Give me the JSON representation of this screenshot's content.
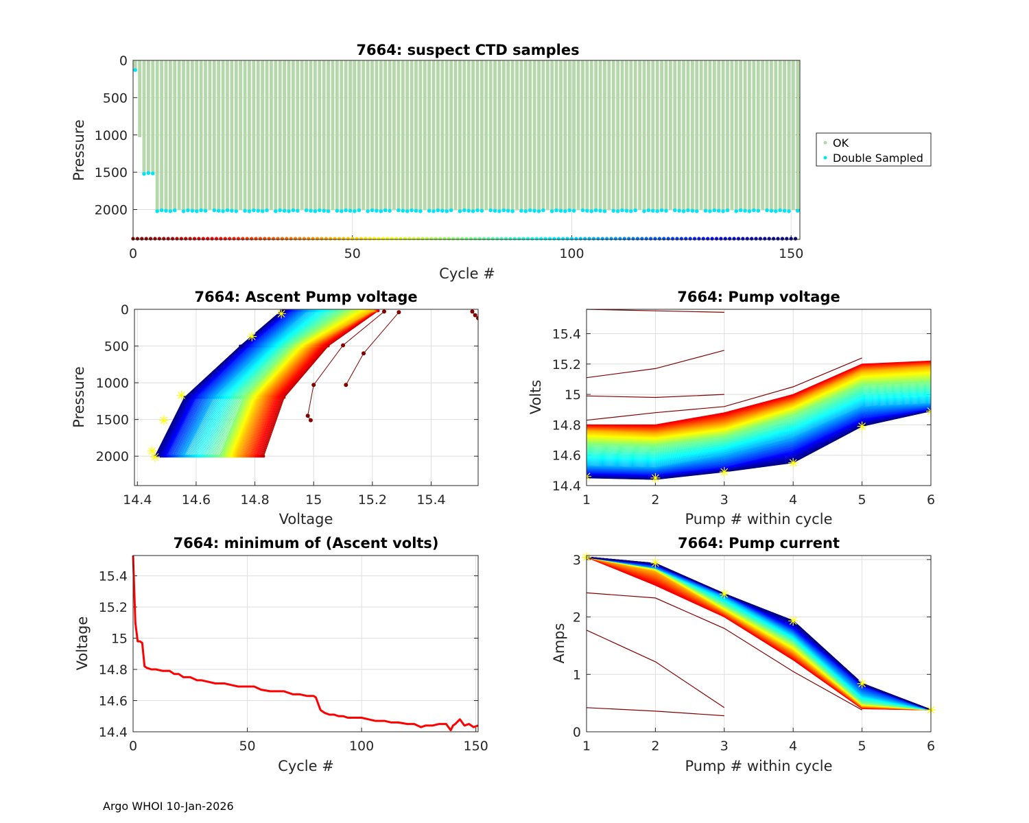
{
  "footer": "Argo WHOI 10-Jan-2026",
  "chart_data": [
    {
      "id": "ctd",
      "type": "scatter",
      "title": "7664: suspect CTD samples",
      "xlabel": "Cycle #",
      "ylabel": "Pressure",
      "xlim": [
        0,
        152
      ],
      "ylim": [
        2400,
        0
      ],
      "y_reversed": true,
      "xticks": [
        0,
        50,
        100,
        150
      ],
      "yticks": [
        0,
        500,
        1000,
        1500,
        2000
      ],
      "grid": true,
      "legend": {
        "position": "right-outside",
        "entries": [
          {
            "label": "OK",
            "color": "#b5d8aa"
          },
          {
            "label": "Double Sampled",
            "color": "#00e5f5"
          }
        ]
      },
      "ok_profile_depths": {
        "cycle_0": 130,
        "cycle_1": 1030,
        "cycles_2_4": 1510,
        "cycles_5_152": 2010
      },
      "double_sampled": [
        {
          "cycle": 0,
          "pressure": 130
        },
        {
          "cycle": 2,
          "pressure": 1515
        },
        {
          "cycle": 3,
          "pressure": 1520
        },
        {
          "cycle": 4,
          "pressure": 1515
        },
        {
          "cycles": "5-152 (most)",
          "pressure": 2010
        }
      ],
      "cycle_color_strip": {
        "pressure": 2400,
        "colormap": "jet (reversed: dark red at cycle 0 to dark blue at cycle 152)"
      }
    },
    {
      "id": "ascent",
      "type": "line",
      "title": "7664: Ascent Pump voltage",
      "xlabel": "Voltage",
      "ylabel": "Pressure",
      "xlim": [
        14.39,
        15.56
      ],
      "ylim": [
        2400,
        0
      ],
      "y_reversed": true,
      "xticks": [
        14.4,
        14.6,
        14.8,
        15,
        15.2,
        15.4
      ],
      "yticks": [
        0,
        500,
        1000,
        1500,
        2000
      ],
      "grid": true,
      "colormap": "jet by cycle",
      "representative_profiles": [
        {
          "cycle_frac": 0.0,
          "points": [
            [
              15.54,
              30
            ],
            [
              15.55,
              80
            ],
            [
              15.56,
              120
            ]
          ]
        },
        {
          "cycle_frac": 0.01,
          "points": [
            [
              15.29,
              40
            ],
            [
              15.17,
              600
            ],
            [
              15.11,
              1030
            ]
          ]
        },
        {
          "cycle_frac": 0.02,
          "points": [
            [
              15.24,
              30
            ],
            [
              15.1,
              490
            ],
            [
              15.0,
              1030
            ],
            [
              14.98,
              1450
            ],
            [
              14.99,
              1510
            ]
          ]
        },
        {
          "cycle_frac": 0.06,
          "points": [
            [
              15.22,
              20
            ],
            [
              15.05,
              500
            ],
            [
              14.9,
              1200
            ],
            [
              14.83,
              2000
            ]
          ]
        },
        {
          "cycle_frac": 0.3,
          "points": [
            [
              15.2,
              20
            ],
            [
              14.98,
              500
            ],
            [
              14.82,
              1200
            ],
            [
              14.74,
              2000
            ]
          ]
        },
        {
          "cycle_frac": 0.5,
          "points": [
            [
              15.1,
              20
            ],
            [
              14.92,
              500
            ],
            [
              14.76,
              1200
            ],
            [
              14.68,
              2000
            ]
          ]
        },
        {
          "cycle_frac": 0.7,
          "points": [
            [
              14.98,
              20
            ],
            [
              14.84,
              500
            ],
            [
              14.66,
              1200
            ],
            [
              14.56,
              2000
            ]
          ]
        },
        {
          "cycle_frac": 0.85,
          "points": [
            [
              14.92,
              20
            ],
            [
              14.78,
              500
            ],
            [
              14.6,
              1200
            ],
            [
              14.5,
              2000
            ]
          ]
        },
        {
          "cycle_frac": 1.0,
          "points": [
            [
              14.89,
              20
            ],
            [
              14.75,
              500
            ],
            [
              14.56,
              1200
            ],
            [
              14.46,
              2000
            ]
          ]
        }
      ],
      "highlight_stars": [
        [
          14.89,
          60
        ],
        [
          14.79,
          370
        ],
        [
          14.55,
          1170
        ],
        [
          14.49,
          1510
        ],
        [
          14.45,
          1930
        ],
        [
          14.46,
          2010
        ]
      ]
    },
    {
      "id": "pumpv",
      "type": "line",
      "title": "7664: Pump voltage",
      "xlabel": "Pump # within cycle",
      "ylabel": "Volts",
      "xlim": [
        1,
        6
      ],
      "ylim": [
        14.4,
        15.56
      ],
      "xticks": [
        1,
        2,
        3,
        4,
        5,
        6
      ],
      "yticks": [
        14.4,
        14.6,
        14.8,
        15,
        15.2,
        15.4
      ],
      "grid": true,
      "colormap": "jet by cycle",
      "early_cycles": [
        {
          "x": [
            1,
            2,
            3
          ],
          "y": [
            15.56,
            15.55,
            15.54
          ]
        },
        {
          "x": [
            1,
            2,
            3
          ],
          "y": [
            15.11,
            15.17,
            15.29
          ]
        },
        {
          "x": [
            1,
            2,
            3
          ],
          "y": [
            14.99,
            14.98,
            15.0
          ]
        }
      ],
      "representative_profiles": [
        {
          "cycle_frac": 0.04,
          "y": [
            14.83,
            14.88,
            14.92,
            15.05,
            15.24
          ]
        },
        {
          "cycle_frac": 0.1,
          "y": [
            14.8,
            14.8,
            14.88,
            15.0,
            15.2,
            15.22
          ]
        },
        {
          "cycle_frac": 0.3,
          "y": [
            14.76,
            14.74,
            14.8,
            14.94,
            15.15,
            15.18
          ]
        },
        {
          "cycle_frac": 0.5,
          "y": [
            14.67,
            14.66,
            14.72,
            14.86,
            15.06,
            15.08
          ]
        },
        {
          "cycle_frac": 0.7,
          "y": [
            14.53,
            14.52,
            14.6,
            14.72,
            14.92,
            14.94
          ]
        },
        {
          "cycle_frac": 0.85,
          "y": [
            14.48,
            14.47,
            14.52,
            14.63,
            14.84,
            14.9
          ]
        },
        {
          "cycle_frac": 1.0,
          "y": [
            14.45,
            14.44,
            14.49,
            14.55,
            14.79,
            14.89
          ]
        }
      ],
      "highlight_stars": [
        [
          1,
          14.46
        ],
        [
          2,
          14.45
        ],
        [
          3,
          14.49
        ],
        [
          4,
          14.55
        ],
        [
          5,
          14.79
        ],
        [
          6,
          14.89
        ]
      ]
    },
    {
      "id": "minv",
      "type": "line",
      "title": "7664: minimum of (Ascent volts)",
      "xlabel": "Cycle #",
      "ylabel": "Voltage",
      "xlim": [
        0,
        151
      ],
      "ylim": [
        14.4,
        15.53
      ],
      "xticks": [
        0,
        50,
        100,
        150
      ],
      "yticks": [
        14.4,
        14.6,
        14.8,
        15,
        15.2,
        15.4
      ],
      "grid": true,
      "color": "#ff0000",
      "x": [
        0,
        1,
        2,
        3,
        4,
        5,
        6,
        8,
        10,
        13,
        16,
        18,
        20,
        22,
        25,
        28,
        30,
        33,
        36,
        40,
        43,
        46,
        50,
        53,
        56,
        60,
        63,
        66,
        70,
        73,
        76,
        79,
        80,
        81,
        82,
        84,
        86,
        88,
        90,
        92,
        94,
        96,
        98,
        100,
        103,
        106,
        110,
        113,
        116,
        120,
        123,
        126,
        128,
        131,
        134,
        137,
        139,
        140,
        141,
        143,
        145,
        147,
        149,
        151
      ],
      "y": [
        15.53,
        15.1,
        14.98,
        14.98,
        14.97,
        14.82,
        14.81,
        14.8,
        14.8,
        14.79,
        14.79,
        14.77,
        14.77,
        14.75,
        14.75,
        14.73,
        14.73,
        14.72,
        14.71,
        14.71,
        14.7,
        14.69,
        14.69,
        14.69,
        14.67,
        14.66,
        14.66,
        14.66,
        14.64,
        14.64,
        14.63,
        14.63,
        14.62,
        14.58,
        14.54,
        14.52,
        14.51,
        14.51,
        14.5,
        14.5,
        14.49,
        14.49,
        14.49,
        14.49,
        14.48,
        14.47,
        14.47,
        14.46,
        14.46,
        14.45,
        14.45,
        14.43,
        14.44,
        14.44,
        14.45,
        14.45,
        14.41,
        14.44,
        14.45,
        14.48,
        14.44,
        14.45,
        14.43,
        14.44
      ]
    },
    {
      "id": "pumpc",
      "type": "line",
      "title": "7664: Pump current",
      "xlabel": "Pump # within cycle",
      "ylabel": "Amps",
      "xlim": [
        1,
        6
      ],
      "ylim": [
        0,
        3.07
      ],
      "xticks": [
        1,
        2,
        3,
        4,
        5,
        6
      ],
      "yticks": [
        0,
        1,
        2,
        3
      ],
      "grid": true,
      "colormap": "jet by cycle",
      "early_cycles": [
        {
          "x": [
            1,
            2,
            3
          ],
          "y": [
            0.42,
            0.36,
            0.28
          ]
        },
        {
          "x": [
            1,
            2,
            3
          ],
          "y": [
            1.77,
            1.22,
            0.42
          ]
        },
        {
          "x": [
            1,
            2,
            3,
            4,
            5
          ],
          "y": [
            2.42,
            2.33,
            1.8,
            1.05,
            0.38
          ]
        }
      ],
      "representative_profiles": [
        {
          "cycle_frac": 0.1,
          "y": [
            3.04,
            2.55,
            2.0,
            1.25,
            0.4,
            0.38
          ]
        },
        {
          "cycle_frac": 0.3,
          "y": [
            3.04,
            2.8,
            2.1,
            1.4,
            0.45,
            0.38
          ]
        },
        {
          "cycle_frac": 0.5,
          "y": [
            3.04,
            2.85,
            2.2,
            1.55,
            0.5,
            0.38
          ]
        },
        {
          "cycle_frac": 0.7,
          "y": [
            3.04,
            2.85,
            2.35,
            1.7,
            0.65,
            0.38
          ]
        },
        {
          "cycle_frac": 0.85,
          "y": [
            3.04,
            2.9,
            2.4,
            1.8,
            0.8,
            0.38
          ]
        },
        {
          "cycle_frac": 1.0,
          "y": [
            3.04,
            2.93,
            2.4,
            1.93,
            0.84,
            0.38
          ]
        }
      ],
      "highlight_stars": [
        [
          1,
          3.04
        ],
        [
          2,
          2.94
        ],
        [
          3,
          2.4
        ],
        [
          4,
          1.93
        ],
        [
          5,
          0.84
        ],
        [
          6,
          0.38
        ]
      ]
    }
  ]
}
